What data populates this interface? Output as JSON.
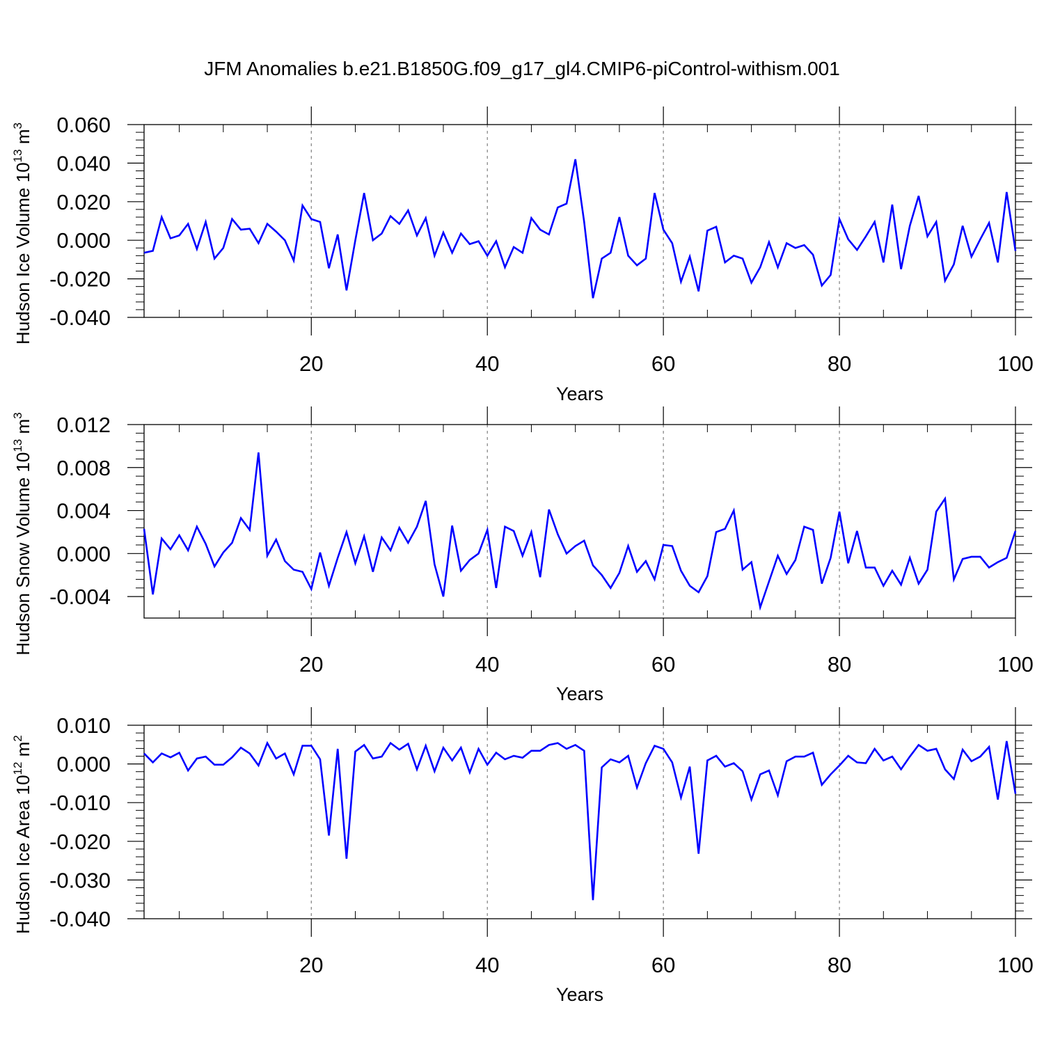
{
  "figure_title": "JFM Anomalies b.e21.B1850G.f09_g17_gl4.CMIP6-piControl-withism.001",
  "colors": {
    "line": "#0000ff",
    "axis": "#000000",
    "grid": "#7f7f7f",
    "background": "#ffffff"
  },
  "chart_data": [
    {
      "type": "line",
      "ylabel": {
        "text": "Hudson Ice Volume 10",
        "exp": "13",
        "unit": "m",
        "unit_exp": "3"
      },
      "xlabel": "Years",
      "xlim": [
        1,
        100
      ],
      "ylim": [
        -0.04,
        0.06
      ],
      "x_ticks": [
        20,
        40,
        60,
        80,
        100
      ],
      "x_tick_labels": [
        "20",
        "40",
        "60",
        "80",
        "100"
      ],
      "y_ticks": [
        -0.04,
        -0.02,
        0.0,
        0.02,
        0.04,
        0.06
      ],
      "y_tick_labels": [
        "-0.040",
        "-0.020",
        "0.000",
        "0.020",
        "0.040",
        "0.060"
      ],
      "grid": "dashed vertical at major x ticks",
      "series": [
        {
          "x_start": 1,
          "values": [
            -0.0065,
            -0.0055,
            0.012,
            0.001,
            0.0025,
            0.0085,
            -0.0045,
            0.0095,
            -0.0095,
            -0.004,
            0.011,
            0.0055,
            0.006,
            -0.0015,
            0.0085,
            0.0045,
            0.0,
            -0.0105,
            0.018,
            0.011,
            0.0095,
            -0.0145,
            0.003,
            -0.026,
            0.0,
            0.0245,
            0.0,
            0.0035,
            0.0125,
            0.0085,
            0.0155,
            0.0025,
            0.0115,
            -0.008,
            0.004,
            -0.0065,
            0.0035,
            -0.002,
            -0.0005,
            -0.008,
            -0.0005,
            -0.014,
            -0.0035,
            -0.0065,
            0.0115,
            0.0055,
            0.003,
            0.017,
            0.019,
            0.042,
            0.0095,
            -0.03,
            -0.0095,
            -0.0065,
            0.012,
            -0.008,
            -0.013,
            -0.0095,
            0.0245,
            0.0055,
            -0.0015,
            -0.0215,
            -0.0085,
            -0.0265,
            0.005,
            0.007,
            -0.0115,
            -0.008,
            -0.0095,
            -0.022,
            -0.014,
            -0.001,
            -0.014,
            -0.0015,
            -0.004,
            -0.0025,
            -0.0075,
            -0.0235,
            -0.018,
            0.011,
            0.0005,
            -0.005,
            0.002,
            0.0095,
            -0.0115,
            0.0185,
            -0.015,
            0.0075,
            0.023,
            0.002,
            0.0095,
            -0.021,
            -0.0125,
            0.0075,
            -0.0085,
            0.0005,
            0.009,
            -0.0115,
            0.025,
            -0.0055
          ]
        }
      ]
    },
    {
      "type": "line",
      "ylabel": {
        "text": "Hudson Snow Volume 10",
        "exp": "13",
        "unit": "m",
        "unit_exp": "3"
      },
      "xlabel": "Years",
      "xlim": [
        1,
        100
      ],
      "ylim": [
        -0.006,
        0.012
      ],
      "x_ticks": [
        20,
        40,
        60,
        80,
        100
      ],
      "x_tick_labels": [
        "20",
        "40",
        "60",
        "80",
        "100"
      ],
      "y_ticks": [
        -0.004,
        0.0,
        0.004,
        0.008,
        0.012
      ],
      "y_tick_labels": [
        "-0.004",
        "0.000",
        "0.004",
        "0.008",
        "0.012"
      ],
      "grid": "dashed vertical at major x ticks",
      "series": [
        {
          "x_start": 1,
          "values": [
            0.0023,
            -0.0038,
            0.0014,
            0.0004,
            0.0017,
            0.0003,
            0.0025,
            0.0009,
            -0.0012,
            0.0001,
            0.001,
            0.0033,
            0.0022,
            0.0094,
            -0.0002,
            0.0013,
            -0.0007,
            -0.0015,
            -0.0017,
            -0.0033,
            0.0001,
            -0.003,
            -0.0004,
            0.002,
            -0.0009,
            0.0016,
            -0.0017,
            0.0015,
            0.0003,
            0.0024,
            0.001,
            0.0025,
            0.0049,
            -0.001,
            -0.004,
            0.0026,
            -0.0016,
            -0.0006,
            0.0,
            0.0022,
            -0.0032,
            0.0025,
            0.0021,
            -0.0002,
            0.002,
            -0.0022,
            0.0041,
            0.0018,
            0.0,
            0.0007,
            0.0012,
            -0.0011,
            -0.002,
            -0.0032,
            -0.0018,
            0.0007,
            -0.0017,
            -0.0007,
            -0.0024,
            0.0008,
            0.0007,
            -0.0016,
            -0.003,
            -0.0036,
            -0.0021,
            0.002,
            0.0023,
            0.004,
            -0.0015,
            -0.0008,
            -0.005,
            -0.0026,
            -0.0002,
            -0.0019,
            -0.0006,
            0.0025,
            0.0022,
            -0.0028,
            -0.0004,
            0.0039,
            -0.0009,
            0.0021,
            -0.0013,
            -0.0013,
            -0.003,
            -0.0016,
            -0.0029,
            -0.0004,
            -0.0028,
            -0.0015,
            0.0039,
            0.0051,
            -0.0024,
            -0.0005,
            -0.0003,
            -0.0003,
            -0.0013,
            -0.0008,
            -0.0004,
            0.0021
          ]
        }
      ]
    },
    {
      "type": "line",
      "ylabel": {
        "text": "Hudson Ice Area 10",
        "exp": "12",
        "unit": "m",
        "unit_exp": "2"
      },
      "xlabel": "Years",
      "xlim": [
        1,
        100
      ],
      "ylim": [
        -0.04,
        0.01
      ],
      "x_ticks": [
        20,
        40,
        60,
        80,
        100
      ],
      "x_tick_labels": [
        "20",
        "40",
        "60",
        "80",
        "100"
      ],
      "y_ticks": [
        -0.04,
        -0.03,
        -0.02,
        -0.01,
        0.0,
        0.01
      ],
      "y_tick_labels": [
        "-0.040",
        "-0.030",
        "-0.020",
        "-0.010",
        "0.000",
        "0.010"
      ],
      "grid": "dashed vertical at major x ticks",
      "series": [
        {
          "x_start": 1,
          "values": [
            0.0027,
            0.0004,
            0.0027,
            0.0017,
            0.0029,
            -0.0017,
            0.0014,
            0.0019,
            -0.0002,
            -0.0002,
            0.0017,
            0.0042,
            0.0027,
            -0.0004,
            0.0054,
            0.0014,
            0.0027,
            -0.0027,
            0.0047,
            0.0047,
            0.0012,
            -0.0185,
            0.0039,
            -0.0245,
            0.0032,
            0.0049,
            0.0014,
            0.0019,
            0.0054,
            0.0037,
            0.0052,
            -0.0014,
            0.0047,
            -0.0019,
            0.0042,
            0.0009,
            0.0042,
            -0.0022,
            0.0039,
            -0.0002,
            0.0029,
            0.0012,
            0.0021,
            0.0016,
            0.0034,
            0.0034,
            0.0049,
            0.0054,
            0.0039,
            0.0049,
            0.0034,
            -0.0352,
            -0.0009,
            0.0012,
            0.0004,
            0.0021,
            -0.0061,
            0.0002,
            0.0047,
            0.0039,
            0.0004,
            -0.0087,
            -0.0007,
            -0.0232,
            0.0009,
            0.0021,
            -0.0007,
            0.0002,
            -0.0019,
            -0.0092,
            -0.0027,
            -0.0017,
            -0.0081,
            0.0007,
            0.0019,
            0.0019,
            0.0029,
            -0.0054,
            -0.0027,
            -0.0004,
            0.0021,
            0.0004,
            0.0002,
            0.0039,
            0.0009,
            0.0019,
            -0.0014,
            0.0019,
            0.0049,
            0.0034,
            0.0039,
            -0.0014,
            -0.0039,
            0.0037,
            0.0007,
            0.0019,
            0.0044,
            -0.0092,
            0.0059,
            -0.0077
          ]
        }
      ]
    }
  ]
}
